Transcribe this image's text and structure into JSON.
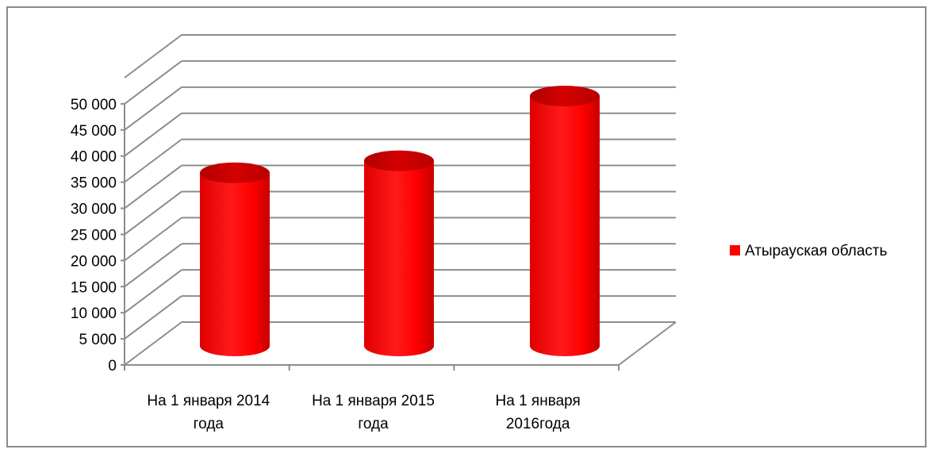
{
  "chart_data": {
    "type": "bar",
    "style": "3d-cylinder",
    "categories": [
      [
        "На 1 января 2014",
        "года"
      ],
      [
        "На 1 января 2015",
        "года"
      ],
      [
        "На 1 января",
        "2016года"
      ]
    ],
    "series": [
      {
        "name": "Атырауская область",
        "values": [
          33000,
          35300,
          47700
        ],
        "color": "#ff0000"
      }
    ],
    "ylim": [
      0,
      50000
    ],
    "ytick_step": 5000,
    "ytick_labels": [
      "0",
      "5 000",
      "10 000",
      "15 000",
      "20 000",
      "25 000",
      "30 000",
      "35 000",
      "40 000",
      "45 000",
      "50 000"
    ],
    "grid": true,
    "legend_position": "right",
    "title": "",
    "xlabel": "",
    "ylabel": ""
  }
}
